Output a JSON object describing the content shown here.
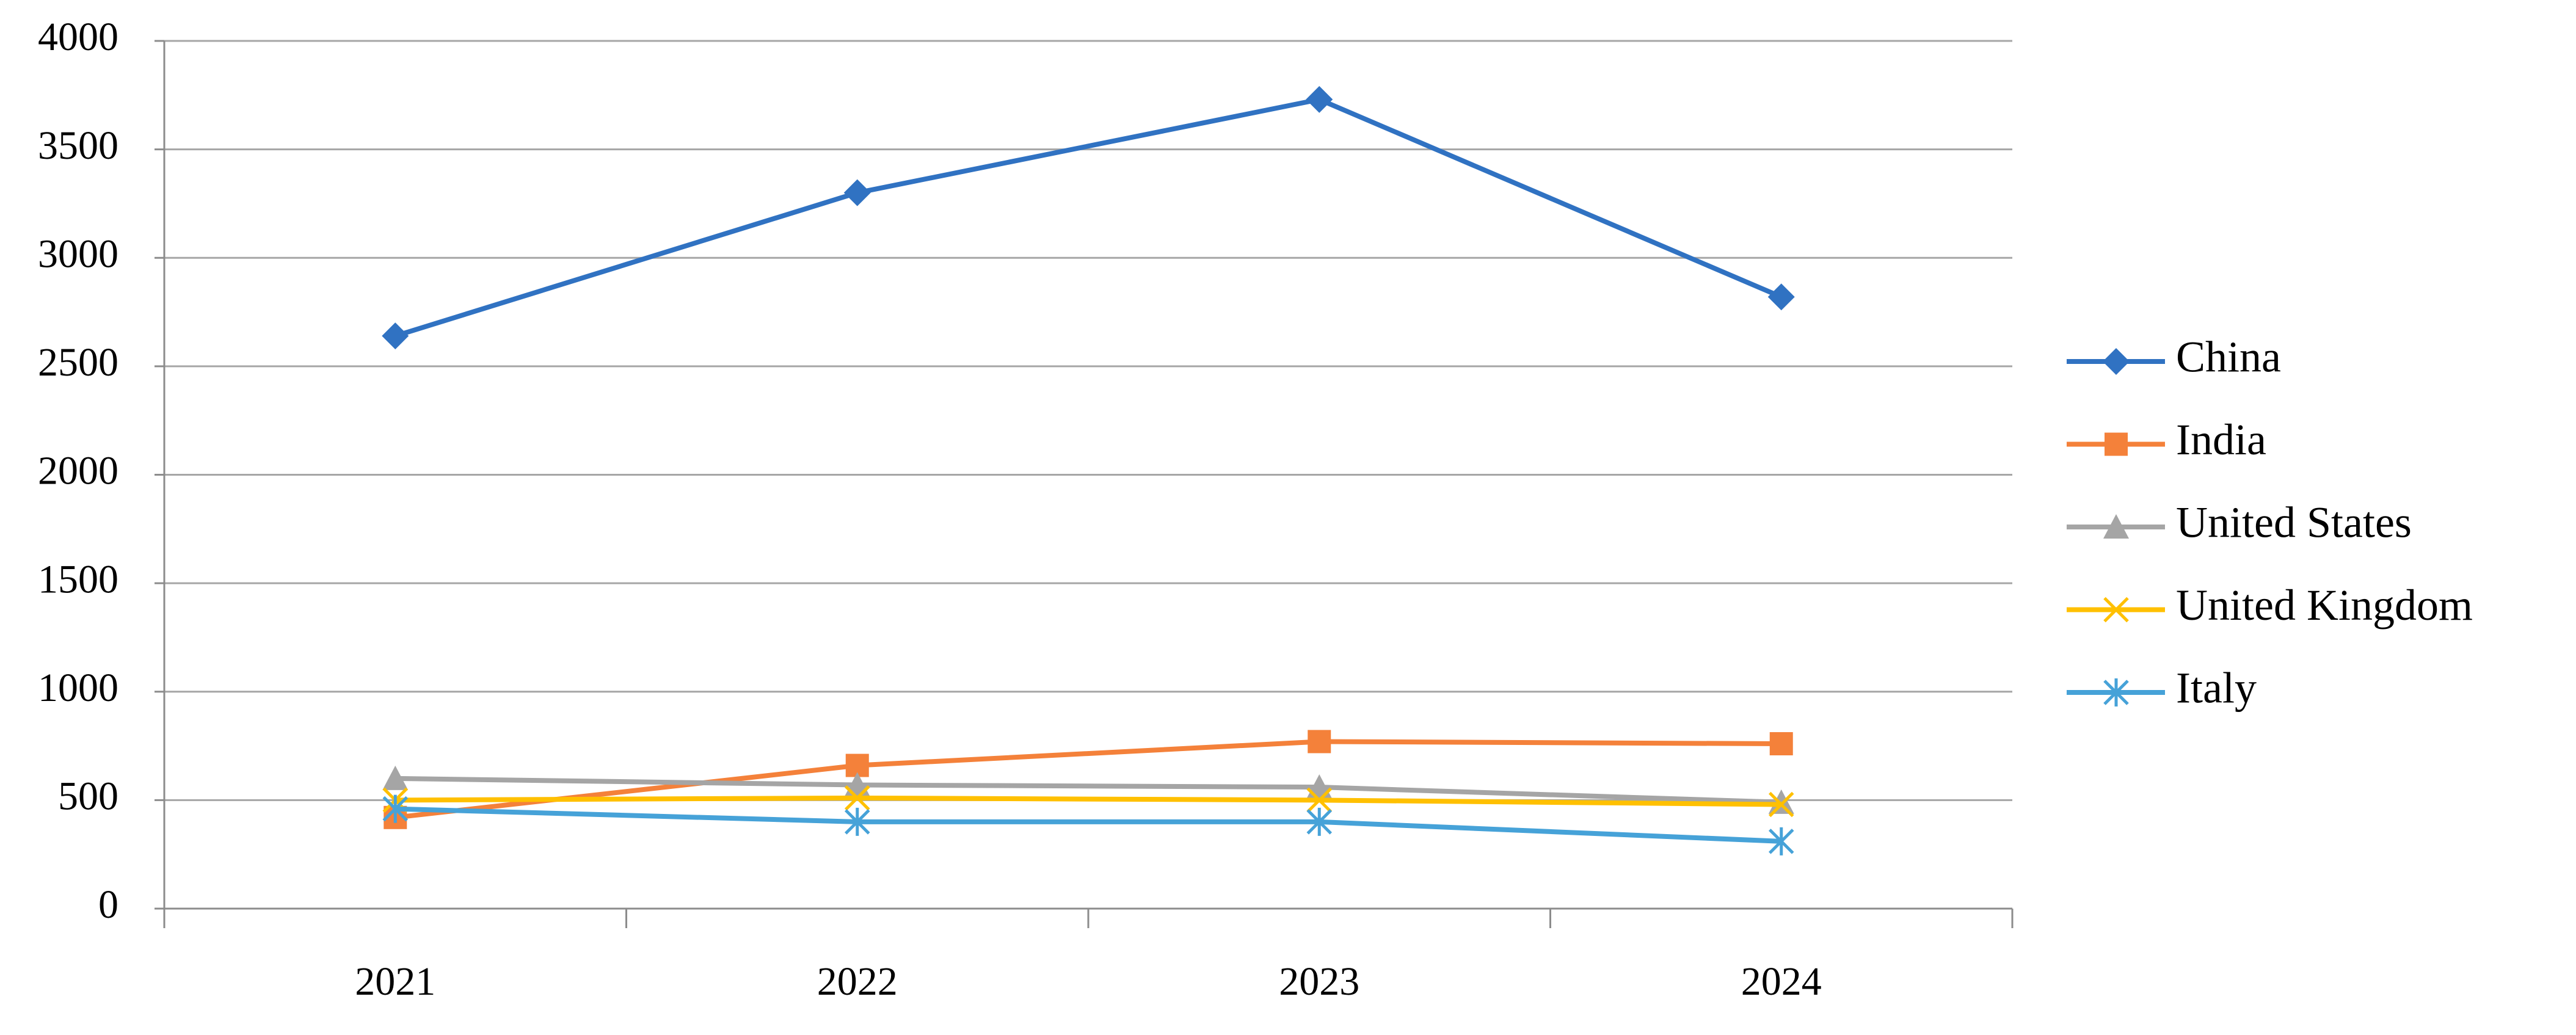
{
  "chart_data": {
    "type": "line",
    "categories": [
      "2021",
      "2022",
      "2023",
      "2024"
    ],
    "series": [
      {
        "name": "China",
        "color": "#3072c2",
        "marker": "diamond",
        "values": [
          2640,
          3300,
          3730,
          2820
        ]
      },
      {
        "name": "India",
        "color": "#f4813a",
        "marker": "square",
        "values": [
          420,
          660,
          770,
          760
        ]
      },
      {
        "name": "United States",
        "color": "#a5a5a5",
        "marker": "triangle",
        "values": [
          600,
          570,
          560,
          490
        ]
      },
      {
        "name": "United Kingdom",
        "color": "#ffc000",
        "marker": "x",
        "values": [
          500,
          510,
          500,
          480
        ]
      },
      {
        "name": "Italy",
        "color": "#46a2d8",
        "marker": "asterisk",
        "values": [
          460,
          400,
          400,
          310
        ]
      }
    ],
    "ylim": [
      0,
      4000
    ],
    "yticks": [
      0,
      500,
      1000,
      1500,
      2000,
      2500,
      3000,
      3500,
      4000
    ],
    "grid": true,
    "legend": "right"
  }
}
